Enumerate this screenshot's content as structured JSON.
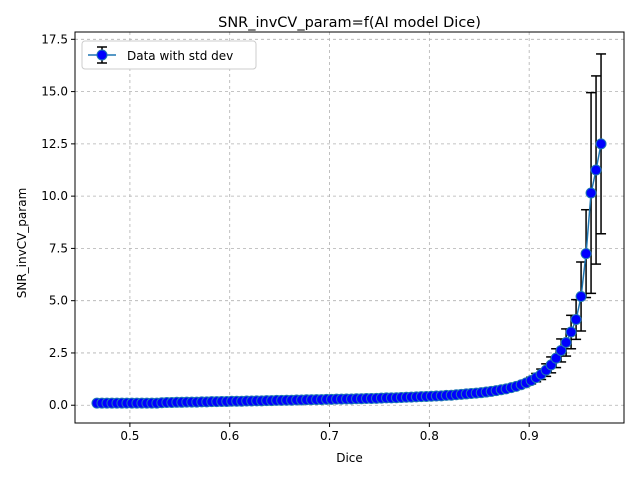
{
  "chart_data": {
    "type": "scatter",
    "title": "SNR_invCV_param=f(AI model Dice)",
    "xlabel": "Dice",
    "ylabel": "SNR_invCV_param",
    "xlim": [
      0.445,
      0.995
    ],
    "ylim": [
      -0.85,
      17.85
    ],
    "xticks": [
      0.5,
      0.6,
      0.7,
      0.8,
      0.9
    ],
    "xtick_labels": [
      "0.5",
      "0.6",
      "0.7",
      "0.8",
      "0.9"
    ],
    "yticks": [
      0.0,
      2.5,
      5.0,
      7.5,
      10.0,
      12.5,
      15.0,
      17.5
    ],
    "ytick_labels": [
      "0.0",
      "2.5",
      "5.0",
      "7.5",
      "10.0",
      "12.5",
      "15.0",
      "17.5"
    ],
    "grid": true,
    "legend_position": "upper-left",
    "colors": {
      "line": "#1f77b4",
      "marker_fill": "#0000ff",
      "errorbar": "#000000"
    },
    "series": [
      {
        "name": "Data with std dev",
        "x": [
          0.467,
          0.472,
          0.477,
          0.482,
          0.487,
          0.492,
          0.497,
          0.502,
          0.507,
          0.512,
          0.517,
          0.522,
          0.527,
          0.532,
          0.537,
          0.542,
          0.547,
          0.552,
          0.557,
          0.562,
          0.567,
          0.572,
          0.577,
          0.582,
          0.587,
          0.592,
          0.597,
          0.602,
          0.607,
          0.612,
          0.617,
          0.622,
          0.627,
          0.632,
          0.637,
          0.642,
          0.647,
          0.652,
          0.657,
          0.662,
          0.667,
          0.672,
          0.677,
          0.682,
          0.687,
          0.692,
          0.697,
          0.702,
          0.707,
          0.712,
          0.717,
          0.722,
          0.727,
          0.732,
          0.737,
          0.742,
          0.747,
          0.752,
          0.757,
          0.762,
          0.767,
          0.772,
          0.777,
          0.782,
          0.787,
          0.792,
          0.797,
          0.802,
          0.807,
          0.812,
          0.817,
          0.822,
          0.827,
          0.832,
          0.837,
          0.842,
          0.847,
          0.852,
          0.857,
          0.862,
          0.867,
          0.872,
          0.877,
          0.882,
          0.887,
          0.892,
          0.897,
          0.902,
          0.907,
          0.912,
          0.917,
          0.922,
          0.927,
          0.932,
          0.937,
          0.942,
          0.947,
          0.952,
          0.957,
          0.962,
          0.967,
          0.972
        ],
        "y": [
          0.1,
          0.1,
          0.1,
          0.1,
          0.1,
          0.1,
          0.1,
          0.1,
          0.1,
          0.1,
          0.1,
          0.1,
          0.1,
          0.12,
          0.13,
          0.13,
          0.14,
          0.14,
          0.15,
          0.15,
          0.15,
          0.16,
          0.16,
          0.17,
          0.17,
          0.18,
          0.18,
          0.19,
          0.19,
          0.19,
          0.2,
          0.2,
          0.21,
          0.21,
          0.22,
          0.22,
          0.23,
          0.23,
          0.24,
          0.24,
          0.25,
          0.25,
          0.26,
          0.26,
          0.27,
          0.27,
          0.28,
          0.28,
          0.29,
          0.29,
          0.3,
          0.3,
          0.31,
          0.31,
          0.32,
          0.32,
          0.33,
          0.34,
          0.35,
          0.35,
          0.36,
          0.37,
          0.38,
          0.39,
          0.4,
          0.41,
          0.42,
          0.43,
          0.44,
          0.45,
          0.47,
          0.48,
          0.5,
          0.52,
          0.54,
          0.56,
          0.58,
          0.6,
          0.63,
          0.66,
          0.7,
          0.74,
          0.78,
          0.84,
          0.9,
          0.98,
          1.07,
          1.18,
          1.32,
          1.48,
          1.68,
          1.93,
          2.25,
          2.62,
          3.0,
          3.5,
          4.1,
          5.2,
          7.25,
          10.15,
          11.25,
          12.5
        ],
        "yerr": [
          0.01,
          0.01,
          0.01,
          0.01,
          0.01,
          0.01,
          0.01,
          0.01,
          0.01,
          0.01,
          0.01,
          0.01,
          0.01,
          0.01,
          0.01,
          0.01,
          0.01,
          0.01,
          0.01,
          0.01,
          0.01,
          0.01,
          0.01,
          0.01,
          0.01,
          0.01,
          0.01,
          0.01,
          0.01,
          0.01,
          0.01,
          0.01,
          0.01,
          0.01,
          0.01,
          0.01,
          0.01,
          0.01,
          0.01,
          0.01,
          0.01,
          0.01,
          0.01,
          0.01,
          0.01,
          0.01,
          0.01,
          0.01,
          0.01,
          0.01,
          0.01,
          0.01,
          0.01,
          0.01,
          0.01,
          0.01,
          0.01,
          0.01,
          0.01,
          0.01,
          0.01,
          0.01,
          0.01,
          0.01,
          0.01,
          0.01,
          0.01,
          0.01,
          0.01,
          0.01,
          0.01,
          0.01,
          0.02,
          0.02,
          0.02,
          0.02,
          0.02,
          0.03,
          0.03,
          0.04,
          0.05,
          0.06,
          0.07,
          0.08,
          0.09,
          0.1,
          0.13,
          0.16,
          0.2,
          0.25,
          0.3,
          0.38,
          0.45,
          0.55,
          0.65,
          0.8,
          0.95,
          1.65,
          2.1,
          4.8,
          4.5,
          4.3
        ]
      }
    ]
  }
}
